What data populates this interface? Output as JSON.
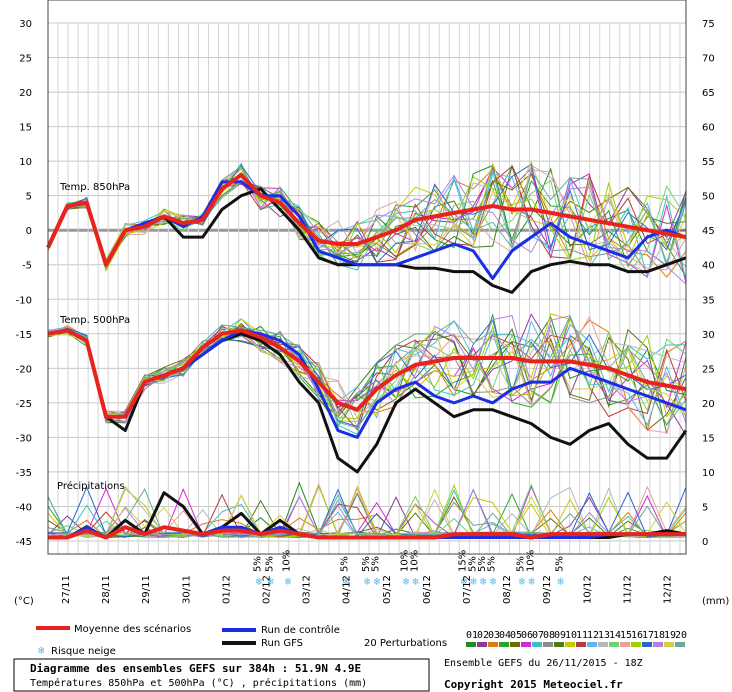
{
  "chart_data": {
    "type": "line",
    "dates": [
      "27/11",
      "28/11",
      "29/11",
      "30/11",
      "01/12",
      "02/12",
      "03/12",
      "04/12",
      "05/12",
      "06/12",
      "07/12",
      "08/12",
      "09/12",
      "10/12",
      "11/12",
      "12/12"
    ],
    "left_ticks": [
      30,
      25,
      20,
      15,
      10,
      5,
      0,
      -5,
      -10,
      -15,
      -20,
      -25,
      -30,
      -35,
      -40,
      -45
    ],
    "right_ticks": [
      75,
      70,
      65,
      60,
      55,
      50,
      45,
      40,
      35,
      30,
      25,
      20,
      15,
      10,
      5,
      0
    ],
    "left_unit": "(°C)",
    "right_unit": "(mm)",
    "ylim": [
      -45,
      30
    ],
    "panel_labels": {
      "t850": "Temp. 850hPa",
      "t500": "Temp. 500hPa",
      "precip": "Précipitations"
    },
    "series": [
      {
        "name": "Moyenne des scénarios",
        "color": "#e8231e",
        "t850": [
          -2.5,
          3.5,
          4,
          -5,
          0,
          0.5,
          2,
          1,
          1.5,
          6,
          8,
          5,
          4,
          1,
          -1.5,
          -2,
          -2,
          -1,
          0,
          1.5,
          2,
          2.5,
          3,
          3.5,
          3,
          3,
          2.5,
          2,
          1.5,
          1,
          0.5,
          0,
          -0.5,
          -1
        ],
        "t500": [
          -15,
          -14.5,
          -16,
          -27,
          -27,
          -22,
          -21,
          -20,
          -17,
          -15,
          -14.5,
          -15.5,
          -17,
          -19,
          -22,
          -25,
          -26,
          -23,
          -21,
          -19.5,
          -19,
          -18.5,
          -18.5,
          -18.5,
          -18.5,
          -19,
          -19,
          -19,
          -19.5,
          -20,
          -21,
          -22,
          -22.5,
          -23
        ],
        "precip": [
          -44.5,
          -44.5,
          -43.5,
          -44.5,
          -43,
          -44,
          -43,
          -43.5,
          -44,
          -43.5,
          -43.5,
          -44,
          -43.5,
          -44,
          -44.5,
          -44.5,
          -44.5,
          -44.5,
          -44.5,
          -44.5,
          -44.5,
          -44,
          -44,
          -44,
          -44,
          -44.5,
          -44,
          -44,
          -44,
          -44,
          -44,
          -44,
          -44,
          -44
        ]
      },
      {
        "name": "Run de contrôle",
        "color": "#1a2ee6",
        "t850": [
          -2.5,
          3.5,
          4,
          -5,
          0,
          1,
          2,
          0.5,
          2,
          7,
          7,
          5,
          5,
          2,
          -3,
          -4,
          -5,
          -5,
          -5,
          -4,
          -3,
          -2,
          -3,
          -7,
          -3,
          -1,
          1,
          -1,
          -2,
          -3,
          -4,
          -1,
          0,
          -1
        ],
        "t500": [
          -15,
          -14.5,
          -16,
          -27,
          -27,
          -22,
          -21,
          -20,
          -18,
          -16,
          -14.5,
          -15,
          -16,
          -18,
          -23,
          -29,
          -30,
          -25,
          -23,
          -22,
          -24,
          -25,
          -24,
          -25,
          -23,
          -22,
          -22,
          -20,
          -21,
          -22,
          -23,
          -24,
          -25,
          -26
        ],
        "precip": [
          -44.5,
          -44.5,
          -43,
          -44.5,
          -43,
          -44,
          -43,
          -43.5,
          -44,
          -43,
          -43,
          -44,
          -43,
          -44,
          -44.5,
          -44.5,
          -44.5,
          -44.5,
          -44.5,
          -44.5,
          -44.5,
          -44.5,
          -44.5,
          -44.5,
          -44.5,
          -44.5,
          -44.5,
          -44.5,
          -44.5,
          -44,
          -44,
          -44,
          -44,
          -44
        ]
      },
      {
        "name": "Run GFS",
        "color": "#111111",
        "t850": [
          -2.5,
          3.5,
          4,
          -5,
          0,
          1,
          2,
          -1,
          -1,
          3,
          5,
          6,
          3,
          0,
          -4,
          -5,
          -5,
          -5,
          -5,
          -5.5,
          -5.5,
          -6,
          -6,
          -8,
          -9,
          -6,
          -5,
          -4.5,
          -5,
          -5,
          -6,
          -6,
          -5,
          -4
        ],
        "t500": [
          -15,
          -14.5,
          -16,
          -27,
          -29,
          -22,
          -21,
          -20,
          -18,
          -16,
          -15,
          -16,
          -18,
          -22,
          -25,
          -33,
          -35,
          -31,
          -25,
          -23,
          -25,
          -27,
          -26,
          -26,
          -27,
          -28,
          -30,
          -31,
          -29,
          -28,
          -31,
          -33,
          -33,
          -29
        ],
        "precip": [
          -44.5,
          -44.5,
          -43,
          -44.5,
          -42,
          -44,
          -38,
          -40,
          -44,
          -43,
          -41,
          -44,
          -42,
          -44,
          -44.5,
          -44.5,
          -44.5,
          -44.5,
          -44.5,
          -44.5,
          -44.5,
          -44.5,
          -44.5,
          -44.5,
          -44.5,
          -44.5,
          -44.5,
          -44.5,
          -44.5,
          -44.5,
          -44,
          -44,
          -43.5,
          -44
        ]
      }
    ],
    "perturbation_colors": [
      "#1e8c1e",
      "#8a3a99",
      "#e07b12",
      "#2aa52a",
      "#6b6b00",
      "#d42ad4",
      "#39c2c2",
      "#8c8c8c",
      "#4a7a1a",
      "#c8c800",
      "#b43c3c",
      "#5fb8e8",
      "#b8b8b8",
      "#6ed46e",
      "#e8a0a0",
      "#a0d000",
      "#2a66c8",
      "#b880e0",
      "#d0d040",
      "#66aa99"
    ],
    "snow_risk": [
      {
        "x_index": 11,
        "label": "5%"
      },
      {
        "x_index": 11.6,
        "label": "5%"
      },
      {
        "x_index": 12.5,
        "label": "10%"
      },
      {
        "x_index": 15.5,
        "label": "5%"
      },
      {
        "x_index": 16.6,
        "label": "5%"
      },
      {
        "x_index": 17.1,
        "label": "5%"
      },
      {
        "x_index": 18.6,
        "label": "10%"
      },
      {
        "x_index": 19.1,
        "label": "10%"
      },
      {
        "x_index": 21.6,
        "label": "15%"
      },
      {
        "x_index": 22.1,
        "label": "5%"
      },
      {
        "x_index": 22.6,
        "label": "5%"
      },
      {
        "x_index": 23.1,
        "label": "5%"
      },
      {
        "x_index": 24.6,
        "label": "5%"
      },
      {
        "x_index": 25.1,
        "label": "10%"
      },
      {
        "x_index": 26.6,
        "label": "5%"
      }
    ]
  },
  "legend": {
    "mean": "Moyenne des scénarios",
    "control": "Run de contrôle",
    "gfs": "Run GFS",
    "snow": "Risque neige",
    "perturbations": "20 Perturbations",
    "pert_numbers": [
      "01",
      "02",
      "03",
      "04",
      "05",
      "06",
      "07",
      "08",
      "09",
      "10",
      "11",
      "12",
      "13",
      "14",
      "15",
      "16",
      "17",
      "18",
      "19",
      "20"
    ]
  },
  "footer": {
    "title": "Diagramme des ensembles GEFS sur 384h : 51.9N 4.9E",
    "subtitle": "Températures 850hPa et 500hPa (°C) , précipitations (mm)",
    "run": "Ensemble GEFS du 26/11/2015 - 18Z",
    "copyright": "Copyright 2015 Meteociel.fr"
  }
}
